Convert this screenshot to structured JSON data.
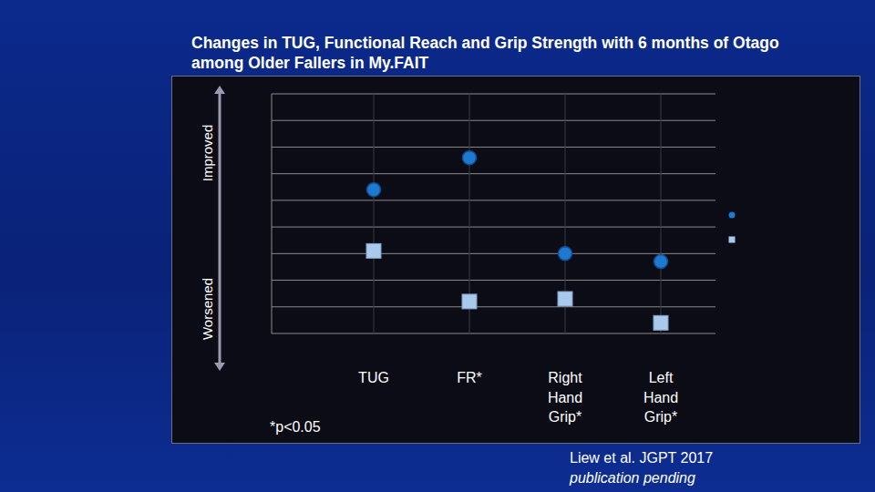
{
  "chart_data": {
    "type": "scatter",
    "title": "Changes in TUG, Functional Reach  and Grip Strength with 6 months of Otago among Older Fallers in My.FAIT",
    "categories": [
      "TUG",
      "FR*",
      "Right Hand Grip*",
      "Left Hand Grip*"
    ],
    "series": [
      {
        "color": "#1d7ad0",
        "marker": "circle",
        "values": [
          5.4,
          6.6,
          3.0,
          2.7
        ]
      },
      {
        "color": "#a8c8ec",
        "marker": "square",
        "values": [
          3.1,
          1.2,
          1.3,
          0.4
        ]
      }
    ],
    "ylim": [
      0,
      9
    ],
    "yticks": [
      0,
      1,
      2,
      3,
      4,
      5,
      6,
      7,
      8,
      9
    ],
    "grid": true,
    "tick_labels": "x",
    "legend": "right",
    "annotations": [
      "Improved",
      "Worsened",
      "*p<0.05",
      "Liew et al. JGPT 2017",
      "publication pending"
    ]
  }
}
